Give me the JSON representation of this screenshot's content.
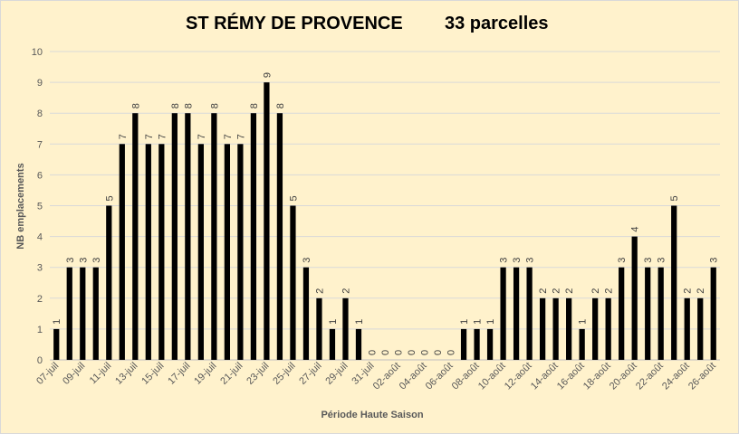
{
  "chart_data": {
    "type": "bar",
    "title": "ST RÉMY DE PROVENCE",
    "subtitle": "33 parcelles",
    "xlabel": "Période Haute Saison",
    "ylabel": "NB emplacements",
    "ylim": [
      0,
      10
    ],
    "yticks": [
      0,
      1,
      2,
      3,
      4,
      5,
      6,
      7,
      8,
      9,
      10
    ],
    "grid": true,
    "legend": "none",
    "bar_color": "#000000",
    "background_color": "#fff2cc",
    "categories": [
      "07-juil",
      "08-juil",
      "09-juil",
      "10-juil",
      "11-juil",
      "12-juil",
      "13-juil",
      "14-juil",
      "15-juil",
      "16-juil",
      "17-juil",
      "18-juil",
      "19-juil",
      "20-juil",
      "21-juil",
      "22-juil",
      "23-juil",
      "24-juil",
      "25-juil",
      "26-juil",
      "27-juil",
      "28-juil",
      "29-juil",
      "30-juil",
      "31-juil",
      "01-août",
      "02-août",
      "03-août",
      "04-août",
      "05-août",
      "06-août",
      "07-août",
      "08-août",
      "09-août",
      "10-août",
      "11-août",
      "12-août",
      "13-août",
      "14-août",
      "15-août",
      "16-août",
      "17-août",
      "18-août",
      "19-août",
      "20-août",
      "21-août",
      "22-août",
      "23-août",
      "24-août",
      "25-août",
      "26-août"
    ],
    "tick_labels": [
      "07-juil",
      "09-juil",
      "11-juil",
      "13-juil",
      "15-juil",
      "17-juil",
      "19-juil",
      "21-juil",
      "23-juil",
      "25-juil",
      "27-juil",
      "29-juil",
      "31-juil",
      "02-août",
      "04-août",
      "06-août",
      "08-août",
      "10-août",
      "12-août",
      "14-août",
      "16-août",
      "18-août",
      "20-août",
      "22-août",
      "24-août",
      "26-août"
    ],
    "values": [
      1,
      3,
      3,
      3,
      5,
      7,
      8,
      7,
      7,
      8,
      8,
      7,
      8,
      7,
      7,
      8,
      9,
      8,
      5,
      3,
      2,
      1,
      2,
      1,
      0,
      0,
      0,
      0,
      0,
      0,
      0,
      1,
      1,
      1,
      3,
      3,
      3,
      2,
      2,
      2,
      1,
      2,
      2,
      3,
      4,
      3,
      3,
      5,
      2,
      2,
      3
    ]
  }
}
